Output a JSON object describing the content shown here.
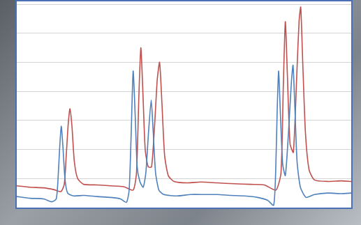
{
  "chart_data": {
    "type": "line",
    "xlim": [
      0,
      100
    ],
    "ylim": [
      0,
      7
    ],
    "yticks": [
      0,
      1,
      2,
      3,
      4,
      5,
      6,
      7
    ],
    "grid": "y",
    "tick_labels": false,
    "series": [
      {
        "color": "#4f81bd",
        "x": [
          0,
          4,
          8,
          10.5,
          11.8,
          12.3,
          12.8,
          13.3,
          13.8,
          14.4,
          15.2,
          17,
          20,
          24,
          28,
          31,
          32.8,
          33.6,
          34.2,
          34.8,
          35.4,
          36,
          36.8,
          37.8,
          38.6,
          39.4,
          40.2,
          40.8,
          41.5,
          42.5,
          44,
          48,
          52,
          56,
          60,
          64,
          68,
          72,
          75,
          76.8,
          77.4,
          77.9,
          78.3,
          78.8,
          79.5,
          80.3,
          81.2,
          82.1,
          82.6,
          83.1,
          83.8,
          84.8,
          86.5,
          89,
          93,
          97,
          100
        ],
        "values": [
          0.38,
          0.32,
          0.3,
          0.2,
          0.3,
          0.9,
          2.0,
          2.8,
          2.1,
          1.0,
          0.5,
          0.4,
          0.42,
          0.38,
          0.35,
          0.3,
          0.18,
          0.6,
          2.5,
          4.7,
          3.2,
          1.4,
          0.9,
          0.7,
          1.2,
          2.6,
          3.7,
          2.6,
          1.2,
          0.6,
          0.45,
          0.4,
          0.45,
          0.45,
          0.45,
          0.42,
          0.4,
          0.35,
          0.25,
          0.08,
          1.2,
          3.5,
          4.7,
          3.3,
          1.5,
          1.1,
          2.5,
          4.3,
          4.9,
          3.6,
          1.6,
          0.7,
          0.35,
          0.45,
          0.5,
          0.48,
          0.5
        ]
      },
      {
        "color": "#c0504d",
        "x": [
          0,
          4,
          8,
          11,
          13.2,
          14.2,
          14.8,
          15.4,
          15.9,
          16.5,
          17.2,
          18.2,
          20,
          24,
          28,
          32,
          34.8,
          35.8,
          36.5,
          37.1,
          37.7,
          38.4,
          39.3,
          40.3,
          41.2,
          42,
          42.7,
          43.4,
          44.2,
          45.3,
          47,
          51,
          55,
          60,
          65,
          70,
          74,
          77.5,
          79,
          79.7,
          80.3,
          80.9,
          81.7,
          82.7,
          83.7,
          84.4,
          84.9,
          85.5,
          86.3,
          87.4,
          89,
          93,
          97,
          100
        ],
        "values": [
          0.75,
          0.7,
          0.68,
          0.62,
          0.55,
          0.8,
          1.8,
          2.9,
          3.4,
          2.8,
          1.6,
          1.0,
          0.8,
          0.78,
          0.75,
          0.72,
          0.6,
          1.2,
          3.8,
          5.5,
          4.0,
          2.0,
          1.4,
          1.4,
          2.8,
          4.4,
          5.0,
          3.6,
          1.8,
          1.1,
          0.9,
          0.85,
          0.88,
          0.85,
          0.82,
          0.8,
          0.78,
          0.6,
          1.2,
          4.2,
          6.4,
          4.6,
          2.2,
          1.9,
          4.5,
          6.4,
          6.9,
          5.0,
          2.6,
          1.3,
          0.95,
          0.9,
          0.92,
          0.9
        ]
      }
    ]
  }
}
